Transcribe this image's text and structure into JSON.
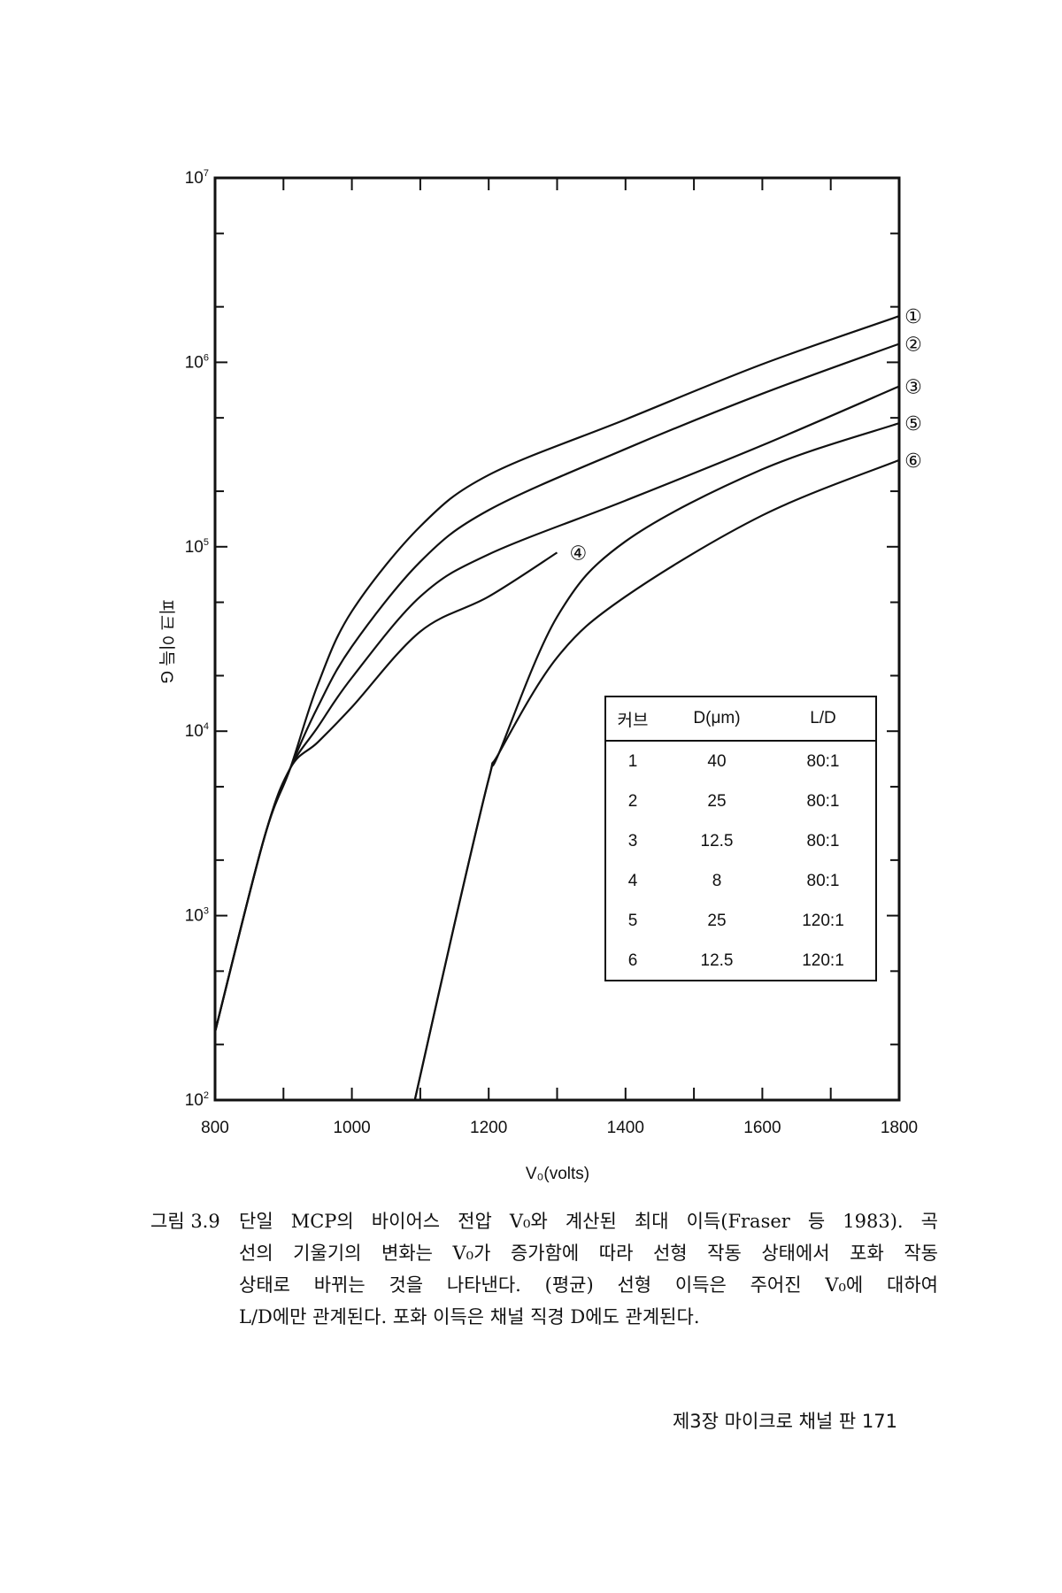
{
  "chart_data": {
    "type": "line",
    "xlabel": "V₀(volts)",
    "ylabel": "피크 이득 G",
    "xlim": [
      800,
      1800
    ],
    "ylim": [
      100,
      10000000
    ],
    "yscale": "log",
    "xticks": [
      "800",
      "1000",
      "1200",
      "1400",
      "1600",
      "1800"
    ],
    "yticks": [
      {
        "base": "10",
        "exp": "2",
        "value": 100
      },
      {
        "base": "10",
        "exp": "3",
        "value": 1000
      },
      {
        "base": "10",
        "exp": "4",
        "value": 10000
      },
      {
        "base": "10",
        "exp": "5",
        "value": 100000
      },
      {
        "base": "10",
        "exp": "6",
        "value": 1000000
      },
      {
        "base": "10",
        "exp": "7",
        "value": 10000000
      }
    ],
    "grid": false,
    "series": [
      {
        "name": "①",
        "x": [
          800,
          871,
          910,
          950,
          1000,
          1100,
          1200,
          1400,
          1600,
          1800
        ],
        "y": [
          234,
          2570,
          6300,
          17800,
          44700,
          129000,
          245000,
          490000,
          977000,
          1780000
        ]
      },
      {
        "name": "②",
        "x": [
          800,
          871,
          910,
          950,
          1000,
          1100,
          1200,
          1400,
          1600,
          1800
        ],
        "y": [
          234,
          2570,
          6300,
          13500,
          28800,
          83000,
          158000,
          339000,
          676000,
          1260000
        ]
      },
      {
        "name": "③",
        "x": [
          800,
          871,
          910,
          950,
          1000,
          1100,
          1200,
          1400,
          1600,
          1800
        ],
        "y": [
          234,
          2570,
          6300,
          10500,
          19500,
          53700,
          91000,
          178000,
          355000,
          741000
        ]
      },
      {
        "name": "④",
        "x": [
          800,
          871,
          910,
          950,
          1000,
          1100,
          1200,
          1300
        ],
        "y": [
          234,
          2570,
          6300,
          8700,
          13500,
          34700,
          53700,
          93000
        ]
      },
      {
        "name": "⑤",
        "x": [
          1092,
          1150,
          1200,
          1215,
          1300,
          1400,
          1600,
          1800
        ],
        "y": [
          100,
          900,
          5500,
          7600,
          41700,
          107000,
          263000,
          468000
        ]
      },
      {
        "name": "⑥",
        "x": [
          1092,
          1150,
          1200,
          1215,
          1300,
          1400,
          1600,
          1800
        ],
        "y": [
          100,
          900,
          5500,
          7600,
          25100,
          53700,
          148000,
          295000
        ]
      }
    ],
    "legend_table": {
      "headers": [
        "커브",
        "D(μm)",
        "L/D"
      ],
      "rows": [
        [
          "1",
          "40",
          "80:1"
        ],
        [
          "2",
          "25",
          "80:1"
        ],
        [
          "3",
          "12.5",
          "80:1"
        ],
        [
          "4",
          "8",
          "80:1"
        ],
        [
          "5",
          "25",
          "120:1"
        ],
        [
          "6",
          "12.5",
          "120:1"
        ]
      ]
    }
  },
  "caption": {
    "number": "그림 3.9",
    "lines": [
      "단일 MCP의 바이어스 전압 V₀와 계산된 최대 이득(Fraser 등 1983). 곡",
      "선의 기울기의 변화는 V₀가 증가함에 따라 선형 작동 상태에서 포화 작동",
      "상태로 바뀌는 것을 나타낸다. (평균) 선형 이득은 주어진 V₀에 대하여",
      "L/D에만 관계된다. 포화 이득은 채널 직경 D에도 관계된다."
    ]
  },
  "footer": "제3장 마이크로 채널 판  171"
}
